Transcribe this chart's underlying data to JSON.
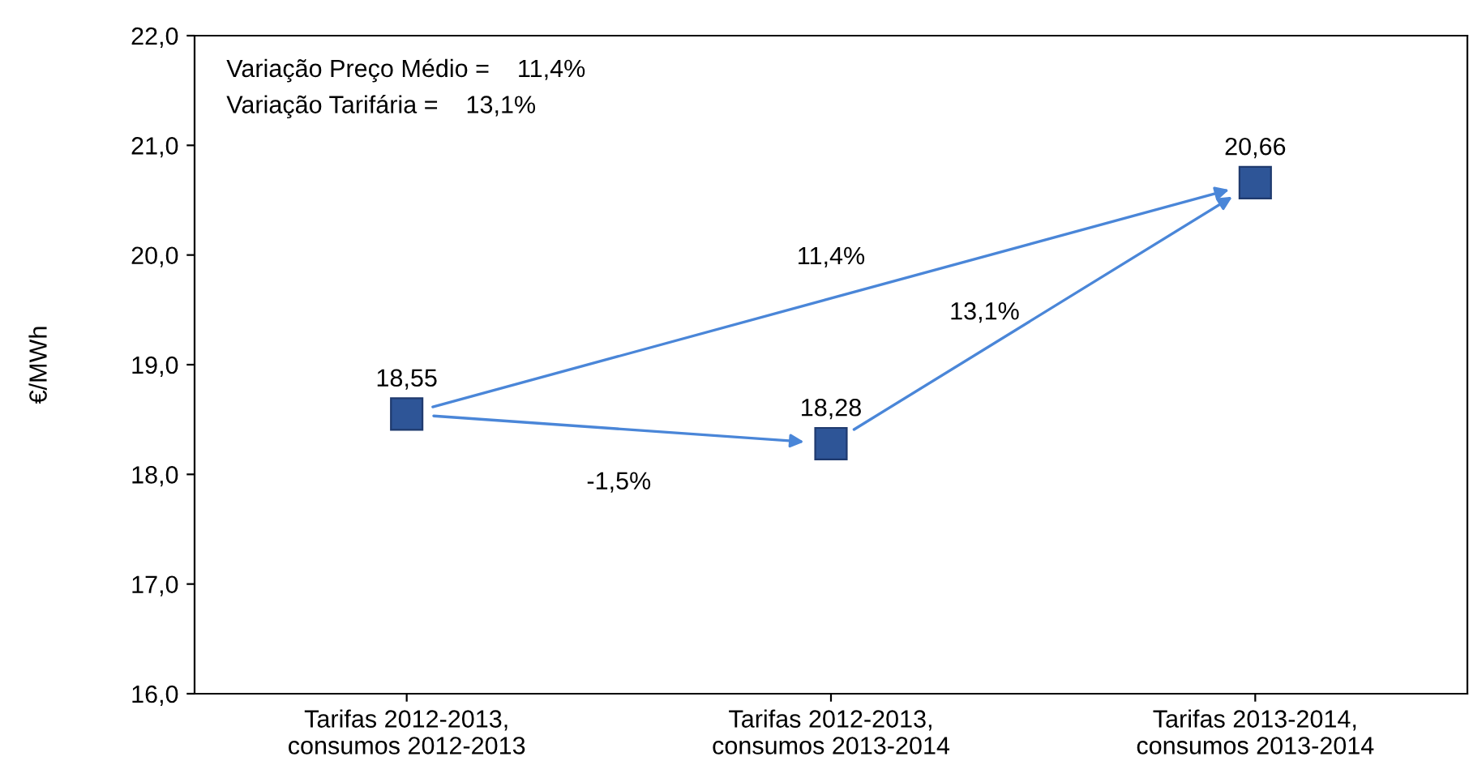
{
  "chart_data": {
    "type": "scatter",
    "ylabel": "€/MWh",
    "categories": [
      "Tarifas 2012-2013,\nconsumos 2012-2013",
      "Tarifas 2012-2013,\nconsumos 2013-2014",
      "Tarifas 2013-2014,\nconsumos 2013-2014"
    ],
    "series": [
      {
        "color": "#2e5597",
        "values": [
          18.55,
          18.28,
          20.66
        ],
        "value_labels": [
          "18,55",
          "18,28",
          "20,66"
        ]
      }
    ],
    "marker": "square",
    "ylim": [
      16,
      22
    ],
    "yticks": [
      {
        "value": 16,
        "label": "16,0"
      },
      {
        "value": 17,
        "label": "17,0"
      },
      {
        "value": 18,
        "label": "18,0"
      },
      {
        "value": 19,
        "label": "19,0"
      },
      {
        "value": 20,
        "label": "20,0"
      },
      {
        "value": 21,
        "label": "21,0"
      },
      {
        "value": 22,
        "label": "22,0"
      }
    ],
    "grid": false,
    "annotations": [
      "Variação Preço Médio =    11,4%",
      "Variação Tarifária =    13,1%",
      "-1,5%",
      "11,4%",
      "13,1%"
    ]
  }
}
